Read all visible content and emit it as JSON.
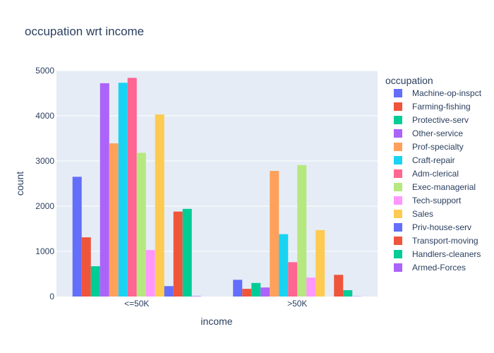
{
  "chart_data": {
    "type": "bar",
    "title": "occupation wrt income",
    "xlabel": "income",
    "ylabel": "count",
    "categories": [
      "<=50K",
      ">50K"
    ],
    "ylim": [
      0,
      5000
    ],
    "yticks": [
      0,
      1000,
      2000,
      3000,
      4000,
      5000
    ],
    "grid": true,
    "legend_title": "occupation",
    "legend_position": "right",
    "plot_background": "#E5ECF6",
    "series": [
      {
        "name": "Machine-op-inspct",
        "color": "#636EFA",
        "values": [
          2650,
          370
        ]
      },
      {
        "name": "Farming-fishing",
        "color": "#EF553B",
        "values": [
          1310,
          170
        ]
      },
      {
        "name": "Protective-serv",
        "color": "#00CC96",
        "values": [
          670,
          300
        ]
      },
      {
        "name": "Other-service",
        "color": "#AB63FA",
        "values": [
          4720,
          200
        ]
      },
      {
        "name": "Prof-specialty",
        "color": "#FFA15A",
        "values": [
          3390,
          2780
        ]
      },
      {
        "name": "Craft-repair",
        "color": "#19D3F3",
        "values": [
          4730,
          1380
        ]
      },
      {
        "name": "Adm-clerical",
        "color": "#FF6692",
        "values": [
          4840,
          760
        ]
      },
      {
        "name": "Exec-managerial",
        "color": "#B6E880",
        "values": [
          3180,
          2910
        ]
      },
      {
        "name": "Tech-support",
        "color": "#FF97FF",
        "values": [
          1030,
          420
        ]
      },
      {
        "name": "Sales",
        "color": "#FECB52",
        "values": [
          4030,
          1470
        ]
      },
      {
        "name": "Priv-house-serv",
        "color": "#636EFA",
        "values": [
          230,
          0
        ]
      },
      {
        "name": "Transport-moving",
        "color": "#EF553B",
        "values": [
          1880,
          480
        ]
      },
      {
        "name": "Handlers-cleaners",
        "color": "#00CC96",
        "values": [
          1940,
          140
        ]
      },
      {
        "name": "Armed-Forces",
        "color": "#AB63FA",
        "values": [
          10,
          5
        ]
      }
    ]
  }
}
